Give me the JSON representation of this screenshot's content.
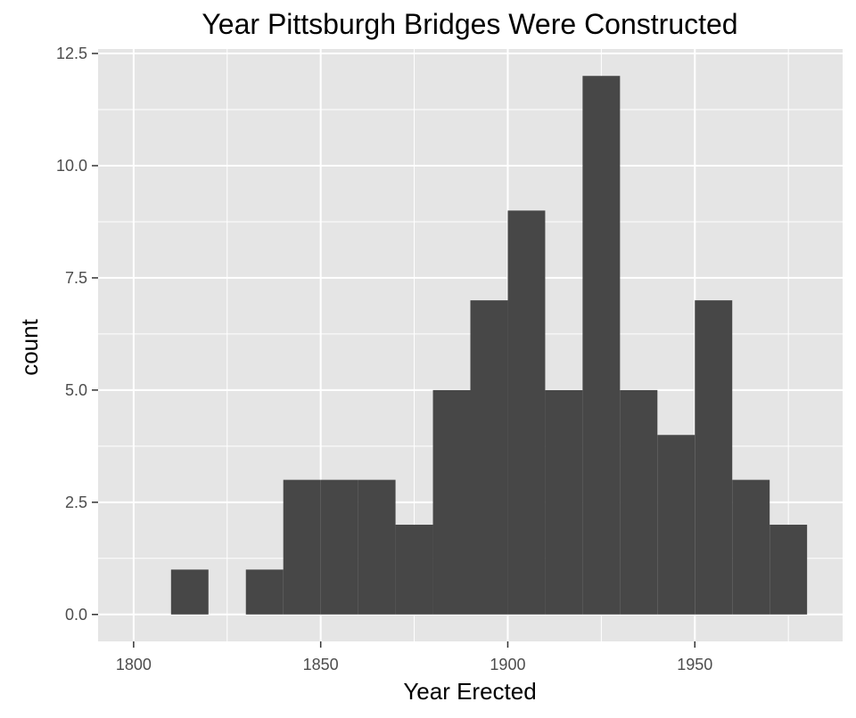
{
  "chart_data": {
    "type": "bar",
    "title": "Year Pittsburgh Bridges Were Constructed",
    "xlabel": "Year Erected",
    "ylabel": "count",
    "bins": [
      {
        "start": 1810,
        "end": 1820,
        "count": 1
      },
      {
        "start": 1820,
        "end": 1830,
        "count": 0
      },
      {
        "start": 1830,
        "end": 1840,
        "count": 1
      },
      {
        "start": 1840,
        "end": 1850,
        "count": 3
      },
      {
        "start": 1850,
        "end": 1860,
        "count": 3
      },
      {
        "start": 1860,
        "end": 1870,
        "count": 3
      },
      {
        "start": 1870,
        "end": 1880,
        "count": 2
      },
      {
        "start": 1880,
        "end": 1890,
        "count": 5
      },
      {
        "start": 1890,
        "end": 1900,
        "count": 7
      },
      {
        "start": 1900,
        "end": 1910,
        "count": 9
      },
      {
        "start": 1910,
        "end": 1920,
        "count": 5
      },
      {
        "start": 1920,
        "end": 1930,
        "count": 12
      },
      {
        "start": 1930,
        "end": 1940,
        "count": 5
      },
      {
        "start": 1940,
        "end": 1950,
        "count": 4
      },
      {
        "start": 1950,
        "end": 1960,
        "count": 7
      },
      {
        "start": 1960,
        "end": 1970,
        "count": 3
      },
      {
        "start": 1970,
        "end": 1980,
        "count": 2
      }
    ],
    "xlim": [
      1790.5,
      1989.5
    ],
    "ylim": [
      -0.6,
      12.6
    ],
    "x_ticks": [
      1800,
      1850,
      1900,
      1950
    ],
    "x_tick_labels": [
      "1800",
      "1850",
      "1900",
      "1950"
    ],
    "y_ticks": [
      0,
      2.5,
      5,
      7.5,
      10,
      12.5
    ],
    "y_tick_labels": [
      "0.0",
      "2.5",
      "5.0",
      "7.5",
      "10.0",
      "12.5"
    ],
    "grid": true,
    "colors": {
      "panel_background": "#e5e5e5",
      "grid_major": "#ffffff",
      "bar_fill": "#474747",
      "tick_mark": "#333333"
    }
  }
}
